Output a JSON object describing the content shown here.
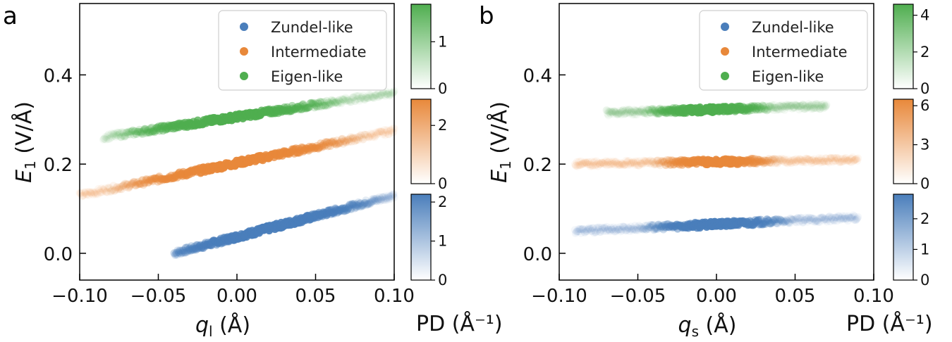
{
  "chart_data": [
    {
      "type": "scatter",
      "panel_label": "a",
      "xlabel_var": "q",
      "xlabel_sub": "l",
      "xlabel_unit": " (Å)",
      "ylabel_var": "E",
      "ylabel_sub": "1",
      "ylabel_unit": " (V/Å)",
      "xlim": [
        -0.1,
        0.1
      ],
      "ylim": [
        -0.06,
        0.56
      ],
      "xticks": [
        -0.1,
        -0.05,
        0.0,
        0.05,
        0.1
      ],
      "xtick_labels": [
        "−0.10",
        "−0.05",
        "0.00",
        "0.05",
        "0.10"
      ],
      "yticks": [
        0.0,
        0.2,
        0.4
      ],
      "ytick_labels": [
        "0.0",
        "0.2",
        "0.4"
      ],
      "legend": {
        "position": "top-right",
        "entries": [
          "Zundel-like",
          "Intermediate",
          "Eigen-like"
        ]
      },
      "colorbar_title": "PD (Å⁻¹)",
      "series": [
        {
          "name": "Zundel-like",
          "color": "#4a7ebb",
          "x_range": [
            -0.04,
            0.1
          ],
          "y_start": 0.0,
          "y_end": 0.13,
          "density_peak_x": 0.02,
          "density_width": 0.045,
          "cbar_max": 2.2,
          "cbar_ticks": [
            0,
            1,
            2
          ]
        },
        {
          "name": "Intermediate",
          "color": "#e8883a",
          "x_range": [
            -0.1,
            0.1
          ],
          "y_start": 0.13,
          "y_end": 0.275,
          "density_peak_x": 0.0,
          "density_width": 0.05,
          "cbar_max": 2.9,
          "cbar_ticks": [
            0,
            2
          ]
        },
        {
          "name": "Eigen-like",
          "color": "#4fae4f",
          "x_range": [
            -0.085,
            0.1
          ],
          "y_start": 0.26,
          "y_end": 0.36,
          "density_peak_x": -0.005,
          "density_width": 0.045,
          "cbar_max": 1.8,
          "cbar_ticks": [
            0,
            1
          ]
        }
      ]
    },
    {
      "type": "scatter",
      "panel_label": "b",
      "xlabel_var": "q",
      "xlabel_sub": "s",
      "xlabel_unit": " (Å)",
      "ylabel_var": "E",
      "ylabel_sub": "1",
      "ylabel_unit": " (V/Å)",
      "xlim": [
        -0.1,
        0.1
      ],
      "ylim": [
        -0.06,
        0.56
      ],
      "xticks": [
        -0.1,
        -0.05,
        0.0,
        0.05,
        0.1
      ],
      "xtick_labels": [
        "−0.10",
        "−0.05",
        "0.00",
        "0.05",
        "0.10"
      ],
      "yticks": [
        0.0,
        0.2,
        0.4
      ],
      "ytick_labels": [
        "0.0",
        "0.2",
        "0.4"
      ],
      "legend": {
        "position": "top-right",
        "entries": [
          "Zundel-like",
          "Intermediate",
          "Eigen-like"
        ]
      },
      "colorbar_title": "PD (Å⁻¹)",
      "series": [
        {
          "name": "Zundel-like",
          "color": "#4a7ebb",
          "x_range": [
            -0.09,
            0.09
          ],
          "y_start": 0.05,
          "y_end": 0.08,
          "density_peak_x": 0.0,
          "density_width": 0.03,
          "cbar_max": 2.8,
          "cbar_ticks": [
            0,
            1,
            2
          ]
        },
        {
          "name": "Intermediate",
          "color": "#e8883a",
          "x_range": [
            -0.09,
            0.09
          ],
          "y_start": 0.2,
          "y_end": 0.21,
          "density_peak_x": 0.0,
          "density_width": 0.025,
          "cbar_max": 6.5,
          "cbar_ticks": [
            0,
            3,
            6
          ]
        },
        {
          "name": "Eigen-like",
          "color": "#4fae4f",
          "x_range": [
            -0.07,
            0.07
          ],
          "y_start": 0.315,
          "y_end": 0.33,
          "density_peak_x": -0.005,
          "density_width": 0.025,
          "cbar_max": 4.6,
          "cbar_ticks": [
            0,
            2,
            4
          ]
        }
      ]
    }
  ]
}
